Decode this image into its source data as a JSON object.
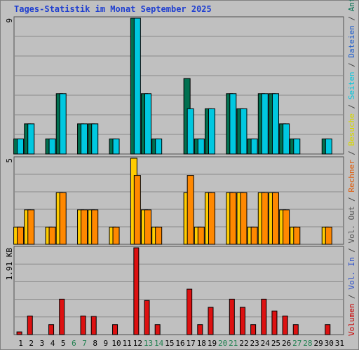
{
  "title": "Tages-Statistik im Monat September 2025",
  "right_legend": {
    "parts": [
      {
        "text": "Volumen",
        "color": "#cc0000"
      },
      {
        "text": " / ",
        "color": "#404040"
      },
      {
        "text": "Vol. In",
        "color": "#3355cc"
      },
      {
        "text": " / ",
        "color": "#404040"
      },
      {
        "text": "Vol. Out",
        "color": "#555555"
      },
      {
        "text": " / ",
        "color": "#404040"
      },
      {
        "text": "Rechner",
        "color": "#e06010"
      },
      {
        "text": " / ",
        "color": "#404040"
      },
      {
        "text": "Besuche",
        "color": "#d8d800"
      },
      {
        "text": " / ",
        "color": "#404040"
      },
      {
        "text": "Seiten",
        "color": "#00c8e0"
      },
      {
        "text": " / ",
        "color": "#404040"
      },
      {
        "text": "Dateien",
        "color": "#1f5fcf"
      },
      {
        "text": " / ",
        "color": "#404040"
      },
      {
        "text": "Anfragen",
        "color": "#007050"
      }
    ]
  },
  "chart_data": [
    {
      "type": "bar",
      "panel": "top",
      "ymax_label": "9",
      "ylim": [
        0,
        9
      ],
      "categories": [
        "1",
        "2",
        "3",
        "4",
        "5",
        "6",
        "7",
        "8",
        "9",
        "10",
        "11",
        "12",
        "13",
        "14",
        "15",
        "16",
        "17",
        "18",
        "19",
        "20",
        "21",
        "22",
        "23",
        "24",
        "25",
        "26",
        "27",
        "28",
        "29",
        "30",
        "31"
      ],
      "series": [
        {
          "name": "Anfragen",
          "color": "#007050",
          "values": [
            1,
            2,
            0,
            1,
            4,
            0,
            2,
            2,
            0,
            1,
            0,
            9,
            4,
            1,
            0,
            0,
            5,
            1,
            3,
            0,
            4,
            3,
            1,
            4,
            4,
            2,
            1,
            0,
            0,
            1,
            0
          ]
        },
        {
          "name": "Seiten",
          "color": "#00c8e0",
          "values": [
            1,
            2,
            0,
            1,
            4,
            0,
            2,
            2,
            0,
            1,
            0,
            9,
            4,
            1,
            0,
            0,
            3,
            1,
            3,
            0,
            4,
            3,
            1,
            4,
            4,
            2,
            1,
            0,
            0,
            1,
            0
          ]
        }
      ]
    },
    {
      "type": "bar",
      "panel": "middle",
      "ymax_label": "5",
      "ylim": [
        0,
        5
      ],
      "categories": [
        "1",
        "2",
        "3",
        "4",
        "5",
        "6",
        "7",
        "8",
        "9",
        "10",
        "11",
        "12",
        "13",
        "14",
        "15",
        "16",
        "17",
        "18",
        "19",
        "20",
        "21",
        "22",
        "23",
        "24",
        "25",
        "26",
        "27",
        "28",
        "29",
        "30",
        "31"
      ],
      "series": [
        {
          "name": "Besuche",
          "color": "#ffcc00",
          "values": [
            1,
            2,
            0,
            1,
            3,
            0,
            2,
            2,
            0,
            1,
            0,
            5,
            2,
            1,
            0,
            0,
            3,
            1,
            3,
            0,
            3,
            3,
            1,
            3,
            3,
            2,
            1,
            0,
            0,
            1,
            0
          ]
        },
        {
          "name": "Rechner",
          "color": "#ff8800",
          "values": [
            1,
            2,
            0,
            1,
            3,
            0,
            2,
            2,
            0,
            1,
            0,
            4,
            2,
            1,
            0,
            0,
            4,
            1,
            3,
            0,
            3,
            3,
            1,
            3,
            3,
            2,
            1,
            0,
            0,
            1,
            0
          ]
        }
      ]
    },
    {
      "type": "bar",
      "panel": "bottom",
      "ymax_label": "1.91 KB",
      "ylim": [
        0,
        1.91
      ],
      "categories": [
        "1",
        "2",
        "3",
        "4",
        "5",
        "6",
        "7",
        "8",
        "9",
        "10",
        "11",
        "12",
        "13",
        "14",
        "15",
        "16",
        "17",
        "18",
        "19",
        "20",
        "21",
        "22",
        "23",
        "24",
        "25",
        "26",
        "27",
        "28",
        "29",
        "30",
        "31"
      ],
      "series": [
        {
          "name": "Volumen",
          "color": "#dd1111",
          "values": [
            0.06,
            0.41,
            0,
            0.22,
            0.78,
            0,
            0.41,
            0.4,
            0,
            0.22,
            0,
            1.91,
            0.75,
            0.22,
            0,
            0,
            1.0,
            0.22,
            0.6,
            0,
            0.78,
            0.6,
            0.22,
            0.78,
            0.52,
            0.41,
            0.22,
            0,
            0,
            0.22,
            0
          ]
        }
      ]
    }
  ],
  "x_axis": {
    "labels": [
      "1",
      "2",
      "3",
      "4",
      "5",
      "6",
      "7",
      "8",
      "9",
      "10",
      "11",
      "12",
      "13",
      "14",
      "15",
      "16",
      "17",
      "18",
      "19",
      "20",
      "21",
      "22",
      "23",
      "24",
      "25",
      "26",
      "27",
      "28",
      "29",
      "30",
      "31"
    ],
    "weekend_color": "#208050",
    "weekday_color": "#000000",
    "weekend_days": [
      "6",
      "7",
      "13",
      "14",
      "20",
      "21",
      "27",
      "28"
    ]
  }
}
